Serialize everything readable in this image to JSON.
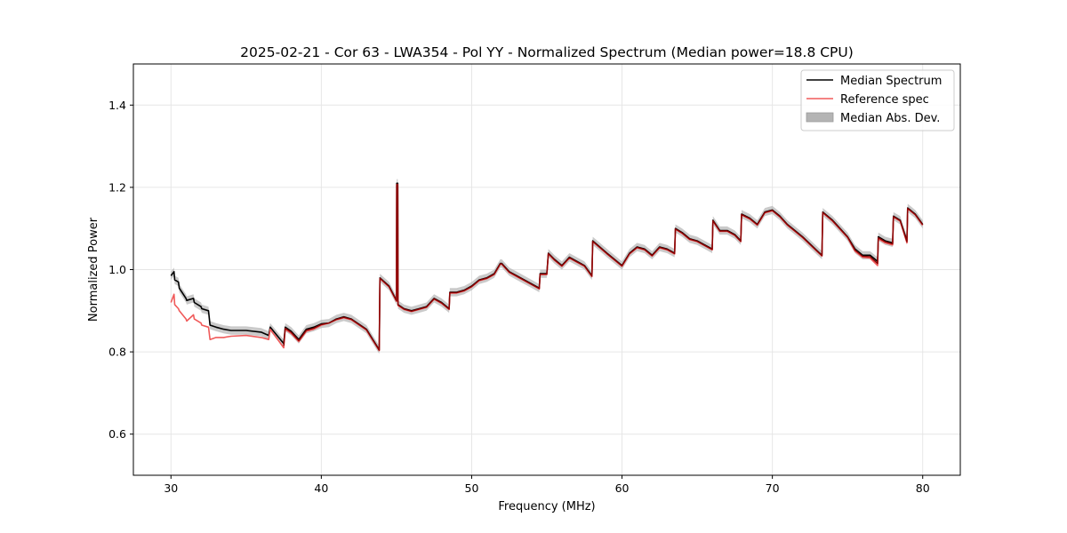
{
  "chart_data": {
    "type": "line",
    "title": "2025-02-21 - Cor 63 - LWA354 - Pol YY - Normalized Spectrum (Median power=18.8 CPU)",
    "xlabel": "Frequency (MHz)",
    "ylabel": "Normalized Power",
    "xlim": [
      27.5,
      82.5
    ],
    "ylim": [
      0.5,
      1.5
    ],
    "xticks": [
      30,
      40,
      50,
      60,
      70,
      80
    ],
    "yticks": [
      0.6,
      0.8,
      1.0,
      1.2,
      1.4
    ],
    "xtick_labels": [
      "30",
      "40",
      "50",
      "60",
      "70",
      "80"
    ],
    "ytick_labels": [
      "0.6",
      "0.8",
      "1.0",
      "1.2",
      "1.4"
    ],
    "grid": true,
    "legend_position": "top-right",
    "legend": [
      "Median Spectrum",
      "Reference spec",
      "Median Abs. Dev."
    ],
    "colors": {
      "median": "#000000",
      "reference": "#f05a5a",
      "mad": "#b4b4b4",
      "overlap": "#8b0000"
    },
    "series": [
      {
        "name": "Median Spectrum",
        "x": [
          30.0,
          30.2,
          30.25,
          30.5,
          30.55,
          31.0,
          31.05,
          31.5,
          31.55,
          32.0,
          32.05,
          32.5,
          32.6,
          33.0,
          33.5,
          34.0,
          35.0,
          36.0,
          36.5,
          36.6,
          37.5,
          37.6,
          38.0,
          38.5,
          39.0,
          39.5,
          40.0,
          40.5,
          41.0,
          41.5,
          42.0,
          43.0,
          43.85,
          43.9,
          44.5,
          45.0,
          45.02,
          45.08,
          45.1,
          45.5,
          46.0,
          46.5,
          47.0,
          47.5,
          48.0,
          48.5,
          48.55,
          49.0,
          49.5,
          50.0,
          50.5,
          51.0,
          51.5,
          51.9,
          52.0,
          52.5,
          53.0,
          54.0,
          54.5,
          54.55,
          55.0,
          55.1,
          55.5,
          56.0,
          56.5,
          57.0,
          57.5,
          58.0,
          58.05,
          59.0,
          60.0,
          60.5,
          61.0,
          61.5,
          62.0,
          62.5,
          63.0,
          63.5,
          63.55,
          64.0,
          64.5,
          65.0,
          65.5,
          66.0,
          66.05,
          66.5,
          67.0,
          67.5,
          67.9,
          67.95,
          68.5,
          69.0,
          69.5,
          70.0,
          70.5,
          71.0,
          72.0,
          73.0,
          73.3,
          73.35,
          74.0,
          75.0,
          75.5,
          76.0,
          76.5,
          77.0,
          77.05,
          77.5,
          78.0,
          78.05,
          78.5,
          78.95,
          79.0,
          79.5,
          80.0
        ],
        "values": [
          0.985,
          0.995,
          0.975,
          0.97,
          0.955,
          0.93,
          0.925,
          0.93,
          0.92,
          0.91,
          0.905,
          0.9,
          0.865,
          0.86,
          0.855,
          0.852,
          0.852,
          0.848,
          0.84,
          0.86,
          0.82,
          0.86,
          0.85,
          0.83,
          0.855,
          0.86,
          0.868,
          0.87,
          0.88,
          0.885,
          0.88,
          0.855,
          0.805,
          0.98,
          0.96,
          0.925,
          1.21,
          1.21,
          0.915,
          0.905,
          0.9,
          0.905,
          0.91,
          0.93,
          0.92,
          0.905,
          0.945,
          0.945,
          0.95,
          0.96,
          0.975,
          0.98,
          0.99,
          1.015,
          1.015,
          0.995,
          0.985,
          0.965,
          0.955,
          0.99,
          0.99,
          1.04,
          1.025,
          1.01,
          1.03,
          1.02,
          1.01,
          0.985,
          1.07,
          1.04,
          1.01,
          1.04,
          1.055,
          1.05,
          1.035,
          1.055,
          1.05,
          1.04,
          1.1,
          1.09,
          1.075,
          1.07,
          1.06,
          1.05,
          1.12,
          1.095,
          1.095,
          1.085,
          1.07,
          1.135,
          1.125,
          1.11,
          1.14,
          1.145,
          1.13,
          1.11,
          1.08,
          1.045,
          1.035,
          1.14,
          1.12,
          1.08,
          1.05,
          1.035,
          1.035,
          1.02,
          1.08,
          1.07,
          1.065,
          1.13,
          1.12,
          1.07,
          1.15,
          1.135,
          1.11
        ],
        "color": "#000000"
      },
      {
        "name": "Reference spec",
        "x": [
          30.0,
          30.2,
          30.25,
          30.5,
          30.55,
          31.0,
          31.05,
          31.5,
          31.55,
          32.0,
          32.05,
          32.5,
          32.6,
          33.0,
          33.5,
          34.0,
          35.0,
          36.0,
          36.5,
          36.6,
          37.5,
          37.6,
          38.0,
          38.5,
          39.0,
          39.5,
          40.0,
          40.5,
          41.0,
          41.5,
          42.0,
          43.0,
          43.85,
          43.9,
          44.5,
          45.0,
          45.02,
          45.08,
          45.1,
          45.5,
          46.0,
          46.5,
          47.0,
          47.5,
          48.0,
          48.5,
          48.55,
          49.0,
          49.5,
          50.0,
          50.5,
          51.0,
          51.5,
          51.9,
          52.0,
          52.5,
          53.0,
          54.0,
          54.5,
          54.55,
          55.0,
          55.1,
          55.5,
          56.0,
          56.5,
          57.0,
          57.5,
          58.0,
          58.05,
          59.0,
          60.0,
          60.5,
          61.0,
          61.5,
          62.0,
          62.5,
          63.0,
          63.5,
          63.55,
          64.0,
          64.5,
          65.0,
          65.5,
          66.0,
          66.05,
          66.5,
          67.0,
          67.5,
          67.9,
          67.95,
          68.5,
          69.0,
          69.5,
          70.0,
          70.5,
          71.0,
          72.0,
          73.0,
          73.3,
          73.35,
          74.0,
          75.0,
          75.5,
          76.0,
          76.5,
          77.0,
          77.05,
          77.5,
          78.0,
          78.05,
          78.5,
          78.95,
          79.0,
          79.5,
          80.0
        ],
        "values": [
          0.92,
          0.94,
          0.915,
          0.905,
          0.9,
          0.88,
          0.875,
          0.89,
          0.88,
          0.87,
          0.865,
          0.86,
          0.83,
          0.835,
          0.835,
          0.838,
          0.84,
          0.835,
          0.83,
          0.855,
          0.81,
          0.855,
          0.845,
          0.825,
          0.85,
          0.855,
          0.865,
          0.87,
          0.878,
          0.883,
          0.878,
          0.853,
          0.803,
          0.978,
          0.958,
          0.923,
          1.205,
          1.205,
          0.913,
          0.903,
          0.898,
          0.903,
          0.908,
          0.928,
          0.918,
          0.903,
          0.943,
          0.943,
          0.948,
          0.958,
          0.973,
          0.978,
          0.988,
          1.013,
          1.013,
          0.993,
          0.983,
          0.963,
          0.953,
          0.988,
          0.988,
          1.038,
          1.023,
          1.008,
          1.028,
          1.018,
          1.008,
          0.983,
          1.068,
          1.038,
          1.008,
          1.038,
          1.053,
          1.048,
          1.033,
          1.053,
          1.048,
          1.038,
          1.098,
          1.088,
          1.073,
          1.068,
          1.058,
          1.048,
          1.118,
          1.093,
          1.093,
          1.083,
          1.068,
          1.133,
          1.123,
          1.108,
          1.138,
          1.143,
          1.128,
          1.108,
          1.078,
          1.043,
          1.033,
          1.138,
          1.118,
          1.078,
          1.045,
          1.03,
          1.028,
          1.01,
          1.075,
          1.065,
          1.06,
          1.128,
          1.118,
          1.065,
          1.148,
          1.133,
          1.108
        ],
        "color": "#f05a5a"
      }
    ],
    "mad_band": {
      "name": "Median Abs. Dev.",
      "half_width": 0.01,
      "color": "#b4b4b4"
    }
  }
}
